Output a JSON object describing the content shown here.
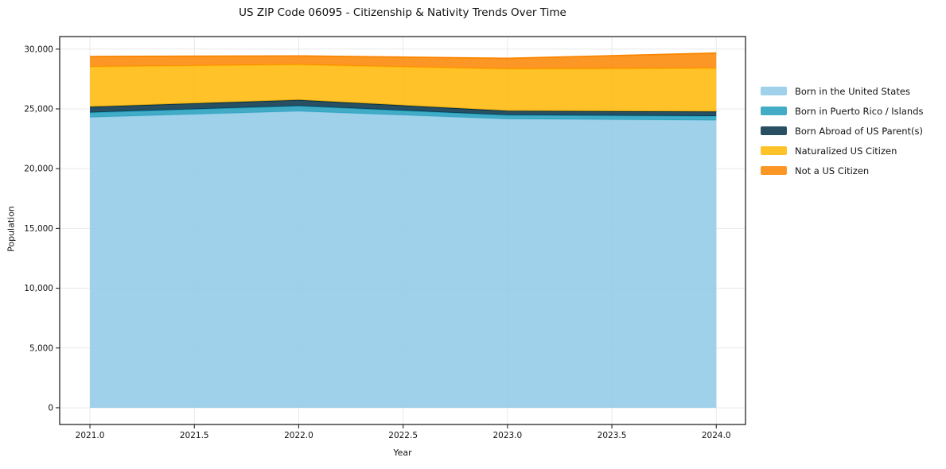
{
  "title": "US ZIP Code 06095 - Citizenship & Nativity Trends Over Time",
  "chart_data": {
    "type": "area",
    "stacked": true,
    "title": "US ZIP Code 06095 - Citizenship & Nativity Trends Over Time",
    "xlabel": "Year",
    "ylabel": "Population",
    "x": [
      2021,
      2022,
      2023,
      2024
    ],
    "series": [
      {
        "name": "Born in the United States",
        "color": "#8ecae6",
        "values": [
          24300,
          24800,
          24150,
          24050
        ]
      },
      {
        "name": "Born in Puerto Rico / Islands",
        "color": "#219ebc",
        "values": [
          400,
          450,
          330,
          350
        ]
      },
      {
        "name": "Born Abroad of US Parent(s)",
        "color": "#023047",
        "values": [
          480,
          500,
          360,
          380
        ]
      },
      {
        "name": "Naturalized US Citizen",
        "color": "#ffb703",
        "values": [
          3350,
          2950,
          3500,
          3620
        ]
      },
      {
        "name": "Not a US Citizen",
        "color": "#fb8500",
        "values": [
          850,
          730,
          890,
          1270
        ]
      }
    ],
    "totals": [
      29380,
      29430,
      29230,
      29670
    ],
    "fill_alpha": 0.85,
    "xlim": [
      2020.855,
      2024.14
    ],
    "ylim": [
      -1400,
      31050
    ],
    "xticks": {
      "values": [
        2021.0,
        2021.5,
        2022.0,
        2022.5,
        2023.0,
        2023.5,
        2024.0
      ],
      "labels": [
        "2021.0",
        "2021.5",
        "2022.0",
        "2022.5",
        "2023.0",
        "2023.5",
        "2024.0"
      ]
    },
    "yticks": {
      "values": [
        0,
        5000,
        10000,
        15000,
        20000,
        25000,
        30000
      ],
      "labels": [
        "0",
        "5,000",
        "10,000",
        "15,000",
        "20,000",
        "25,000",
        "30,000"
      ]
    },
    "grid": true,
    "grid_color": "#e9e9e9",
    "spine_color": "#262626",
    "legend_position": "right-outside"
  }
}
